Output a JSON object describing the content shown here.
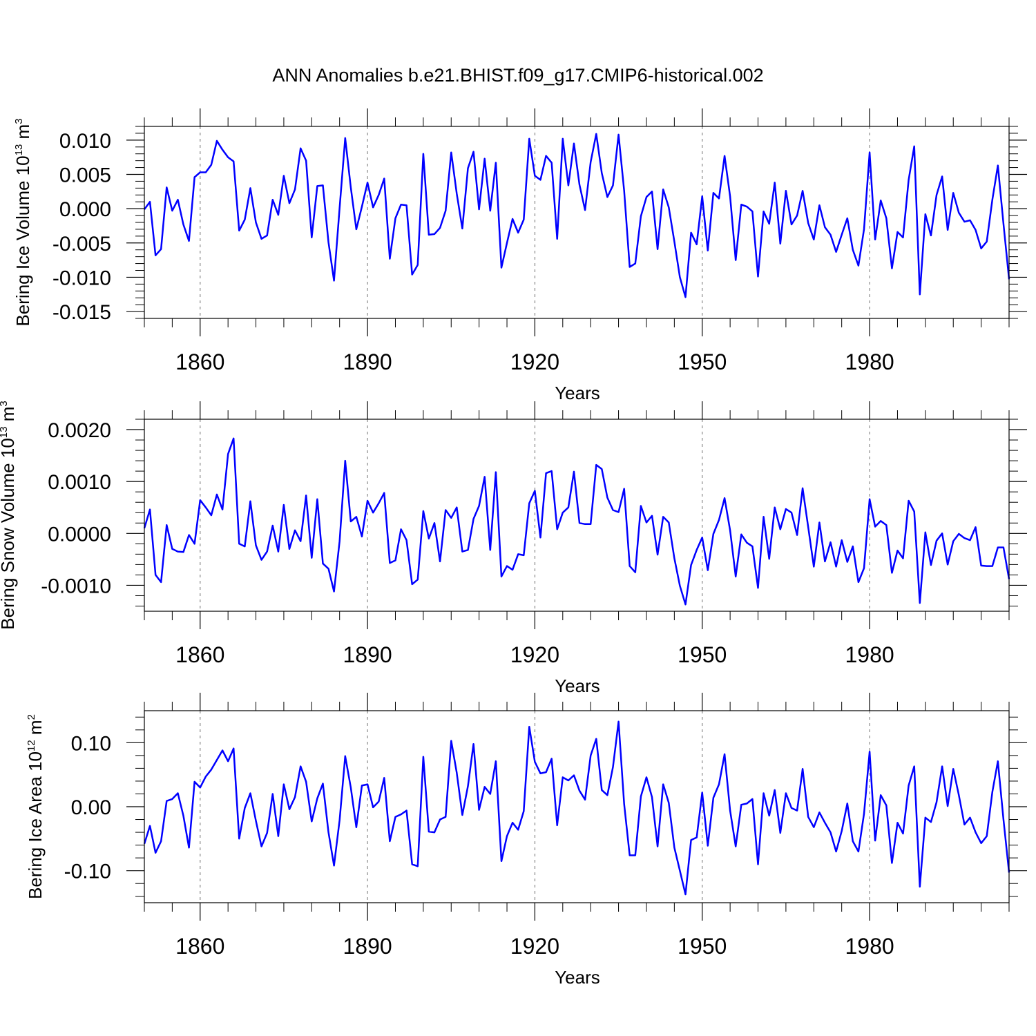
{
  "figure": {
    "title": "ANN Anomalies b.e21.BHIST.f09_g17.CMIP6-historical.002",
    "line_color": "#0000ff",
    "grid_color": "#9a9a9a"
  },
  "chart_data": [
    {
      "type": "line",
      "title": "",
      "ylabel_main": "Bering Ice Volume 10",
      "ylabel_exp": "13",
      "ylabel_unit": "m",
      "ylabel_unit_exp": "3",
      "xlabel": "Years",
      "xlim": [
        1850,
        2005
      ],
      "ylim": [
        -0.016,
        0.012
      ],
      "yticks": [
        -0.015,
        -0.01,
        -0.005,
        0.0,
        0.005,
        0.01
      ],
      "ytick_labels": [
        "-0.015",
        "-0.010",
        "-0.005",
        "0.000",
        "0.005",
        "0.010"
      ],
      "xticks": [
        1860,
        1890,
        1920,
        1950,
        1980
      ],
      "xtick_labels": [
        "1860",
        "1890",
        "1920",
        "1950",
        "1980"
      ],
      "x_start": 1850,
      "series": [
        {
          "name": "Bering Ice Volume",
          "values": [
            -0.0001,
            0.001,
            -0.0068,
            -0.0059,
            0.0031,
            -0.0003,
            0.0013,
            -0.0023,
            -0.0047,
            0.0046,
            0.0053,
            0.0053,
            0.0064,
            0.0099,
            0.0086,
            0.0075,
            0.0069,
            -0.0032,
            -0.0016,
            0.003,
            -0.002,
            -0.0044,
            -0.0039,
            0.0013,
            -0.0009,
            0.0048,
            0.0008,
            0.0028,
            0.0088,
            0.007,
            -0.0042,
            0.0033,
            0.0034,
            -0.0049,
            -0.0105,
            0.0001,
            0.0103,
            0.0031,
            -0.003,
            0.0003,
            0.0038,
            0.0002,
            0.002,
            0.0044,
            -0.0073,
            -0.0014,
            0.0006,
            0.0005,
            -0.0096,
            -0.0082,
            0.008,
            -0.0038,
            -0.0037,
            -0.0028,
            -0.0003,
            0.0082,
            0.0022,
            -0.0029,
            0.0059,
            0.0083,
            -0.0001,
            0.0073,
            -0.0003,
            0.0067,
            -0.0086,
            -0.005,
            -0.0015,
            -0.0035,
            -0.0016,
            0.0102,
            0.0048,
            0.0042,
            0.0077,
            0.0067,
            -0.0044,
            0.0102,
            0.0034,
            0.0095,
            0.0035,
            -0.0002,
            0.0068,
            0.0109,
            0.0052,
            0.0017,
            0.0034,
            0.0108,
            0.0026,
            -0.0085,
            -0.008,
            -0.0011,
            0.0017,
            0.0025,
            -0.0059,
            0.0028,
            0.0002,
            -0.0048,
            -0.01,
            -0.0129,
            -0.0035,
            -0.0052,
            0.0018,
            -0.0061,
            0.0023,
            0.0015,
            0.0077,
            0.0018,
            -0.0075,
            0.0006,
            0.0003,
            -0.0004,
            -0.0099,
            -0.0004,
            -0.0022,
            0.0038,
            -0.0051,
            0.0026,
            -0.0023,
            -0.001,
            0.0026,
            -0.0021,
            -0.0045,
            0.0005,
            -0.0027,
            -0.0038,
            -0.0063,
            -0.0038,
            -0.0014,
            -0.006,
            -0.0083,
            -0.003,
            0.0082,
            -0.0045,
            0.0012,
            -0.0014,
            -0.0087,
            -0.0034,
            -0.0042,
            0.0042,
            0.0091,
            -0.0125,
            -0.0008,
            -0.0039,
            0.002,
            0.0047,
            -0.0031,
            0.0023,
            -0.0006,
            -0.0019,
            -0.0017,
            -0.0031,
            -0.0058,
            -0.0048,
            0.0013,
            0.0063,
            -0.0022,
            -0.0103
          ]
        }
      ]
    },
    {
      "type": "line",
      "title": "",
      "ylabel_main": "Bering Snow Volume 10",
      "ylabel_exp": "13",
      "ylabel_unit": "m",
      "ylabel_unit_exp": "3",
      "xlabel": "Years",
      "xlim": [
        1850,
        2005
      ],
      "ylim": [
        -0.0015,
        0.0022
      ],
      "yticks": [
        -0.001,
        0.0,
        0.001,
        0.002
      ],
      "ytick_labels": [
        "-0.0010",
        "0.0000",
        "0.0010",
        "0.0020"
      ],
      "xticks": [
        1860,
        1890,
        1920,
        1950,
        1980
      ],
      "xtick_labels": [
        "1860",
        "1890",
        "1920",
        "1950",
        "1980"
      ],
      "x_start": 1850,
      "series": [
        {
          "name": "Bering Snow Volume",
          "values": [
            0.0001,
            0.00046,
            -0.0008,
            -0.00094,
            0.00016,
            -0.0003,
            -0.00035,
            -0.00036,
            -3e-05,
            -0.0002,
            0.00064,
            0.0005,
            0.00035,
            0.00075,
            0.00046,
            0.00153,
            0.00183,
            -0.0002,
            -0.00025,
            0.00062,
            -0.00023,
            -0.00051,
            -0.00035,
            0.00015,
            -0.00035,
            0.00055,
            -0.0003,
            6e-05,
            -0.00015,
            0.00073,
            -0.00047,
            0.00066,
            -0.00058,
            -0.00068,
            -0.00112,
            -0.00015,
            0.0014,
            0.00023,
            0.00032,
            -6e-05,
            0.00063,
            0.0004,
            0.00058,
            0.00078,
            -0.00057,
            -0.00052,
            8e-05,
            -0.00013,
            -0.00098,
            -0.00089,
            0.00043,
            -0.0001,
            0.0002,
            -0.00054,
            0.00045,
            0.0003,
            0.0005,
            -0.00035,
            -0.00032,
            0.00028,
            0.00053,
            0.00109,
            -0.00032,
            0.00118,
            -0.00083,
            -0.00063,
            -0.0007,
            -0.0004,
            -0.00042,
            0.00058,
            0.00082,
            -8e-05,
            0.00116,
            0.0012,
            8e-05,
            0.0004,
            0.0005,
            0.00119,
            0.0002,
            0.00018,
            0.00018,
            0.00132,
            0.00124,
            0.00069,
            0.00045,
            0.00041,
            0.00086,
            -0.00063,
            -0.00075,
            0.00053,
            0.00021,
            0.00034,
            -0.00041,
            0.00032,
            0.00021,
            -0.00048,
            -0.00101,
            -0.00137,
            -0.00061,
            -0.00032,
            -8e-05,
            -0.00071,
            -1e-05,
            0.00026,
            0.00068,
            6e-05,
            -0.00083,
            -2e-05,
            -0.00018,
            -0.00025,
            -0.00105,
            0.00032,
            -0.00049,
            0.0005,
            8e-05,
            0.00047,
            0.0004,
            -3e-05,
            0.00087,
            0.00012,
            -0.00064,
            0.00021,
            -0.00054,
            -0.00017,
            -0.00064,
            -0.00013,
            -0.00055,
            -0.00025,
            -0.00094,
            -0.00067,
            0.00066,
            0.00013,
            0.00024,
            0.00016,
            -0.00076,
            -0.00033,
            -0.00048,
            0.00063,
            0.00042,
            -0.00134,
            2e-05,
            -0.00061,
            -0.00014,
            0.0,
            -0.0006,
            -0.00015,
            -1e-05,
            -9e-05,
            -0.00013,
            0.00012,
            -0.00062,
            -0.00063,
            -0.00063,
            -0.00027,
            -0.00027,
            -0.00088
          ]
        }
      ]
    },
    {
      "type": "line",
      "title": "",
      "ylabel_main": "Bering Ice Area 10",
      "ylabel_exp": "12",
      "ylabel_unit": "m",
      "ylabel_unit_exp": "2",
      "xlabel": "Years",
      "xlim": [
        1850,
        2005
      ],
      "ylim": [
        -0.15,
        0.15
      ],
      "yticks": [
        -0.1,
        0.0,
        0.1
      ],
      "ytick_labels": [
        "-0.10",
        "0.00",
        "0.10"
      ],
      "xticks": [
        1860,
        1890,
        1920,
        1950,
        1980
      ],
      "xtick_labels": [
        "1860",
        "1890",
        "1920",
        "1950",
        "1980"
      ],
      "x_start": 1850,
      "series": [
        {
          "name": "Bering Ice Area",
          "values": [
            -0.058,
            -0.03,
            -0.072,
            -0.054,
            0.009,
            0.012,
            0.021,
            -0.014,
            -0.064,
            0.039,
            0.03,
            0.047,
            0.058,
            0.073,
            0.088,
            0.071,
            0.091,
            -0.05,
            -0.002,
            0.021,
            -0.022,
            -0.062,
            -0.041,
            0.02,
            -0.046,
            0.035,
            -0.004,
            0.015,
            0.063,
            0.039,
            -0.023,
            0.013,
            0.036,
            -0.04,
            -0.092,
            -0.021,
            0.079,
            0.03,
            -0.032,
            0.033,
            0.035,
            -0.001,
            0.008,
            0.045,
            -0.054,
            -0.016,
            -0.012,
            -0.006,
            -0.09,
            -0.093,
            0.078,
            -0.039,
            -0.04,
            -0.02,
            -0.016,
            0.103,
            0.053,
            -0.013,
            0.032,
            0.098,
            -0.005,
            0.031,
            0.02,
            0.071,
            -0.085,
            -0.046,
            -0.025,
            -0.036,
            -0.007,
            0.125,
            0.07,
            0.052,
            0.054,
            0.075,
            -0.029,
            0.046,
            0.041,
            0.049,
            0.025,
            0.011,
            0.08,
            0.106,
            0.026,
            0.018,
            0.062,
            0.133,
            0.004,
            -0.076,
            -0.076,
            0.016,
            0.046,
            0.015,
            -0.062,
            0.035,
            0.006,
            -0.064,
            -0.1,
            -0.137,
            -0.052,
            -0.048,
            0.022,
            -0.061,
            0.014,
            0.035,
            0.082,
            -0.006,
            -0.062,
            0.003,
            0.005,
            0.012,
            -0.09,
            0.021,
            -0.014,
            0.026,
            -0.041,
            0.021,
            -0.002,
            -0.006,
            0.059,
            -0.016,
            -0.032,
            -0.009,
            -0.025,
            -0.04,
            -0.07,
            -0.038,
            0.005,
            -0.054,
            -0.07,
            -0.011,
            0.086,
            -0.053,
            0.018,
            0.002,
            -0.088,
            -0.025,
            -0.042,
            0.033,
            0.063,
            -0.125,
            -0.017,
            -0.024,
            0.007,
            0.063,
            0.001,
            0.059,
            0.018,
            -0.028,
            -0.017,
            -0.04,
            -0.057,
            -0.046,
            0.023,
            0.071,
            -0.02,
            -0.103
          ]
        }
      ]
    }
  ]
}
